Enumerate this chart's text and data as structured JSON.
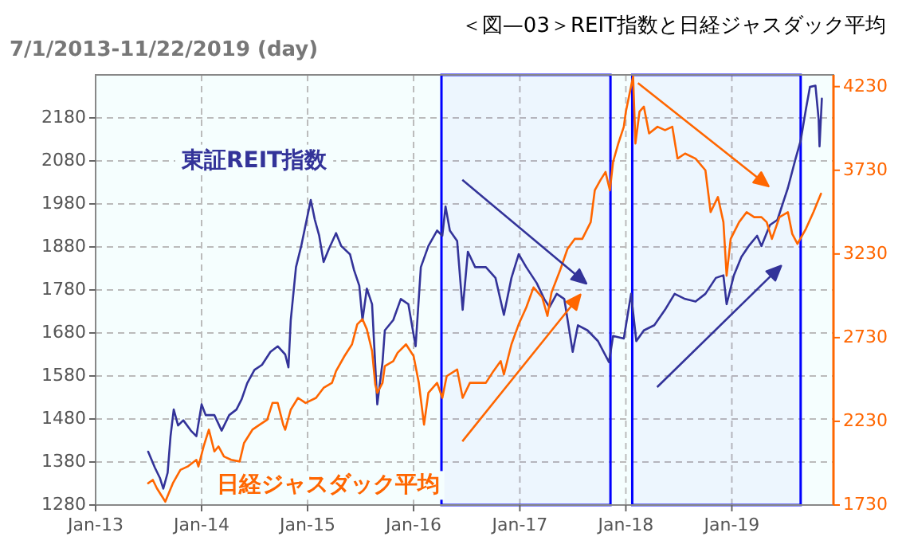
{
  "chart_data": {
    "type": "line",
    "title": "＜図—03＞REIT指数と日経ジャスダック平均",
    "subtitle": "7/1/2013-11/22/2019 (day)",
    "xlim": [
      "2013-01-01",
      "2019-12-17"
    ],
    "xticks": [
      {
        "value": "2013-01-01",
        "label": "Jan-13"
      },
      {
        "value": "2014-01-01",
        "label": "Jan-14"
      },
      {
        "value": "2015-01-01",
        "label": "Jan-15"
      },
      {
        "value": "2016-01-01",
        "label": "Jan-16"
      },
      {
        "value": "2017-01-01",
        "label": "Jan-17"
      },
      {
        "value": "2018-01-01",
        "label": "Jan-18"
      },
      {
        "value": "2019-01-01",
        "label": "Jan-19"
      }
    ],
    "ylim": [
      1280,
      2280
    ],
    "yticks": [
      1280,
      1380,
      1480,
      1580,
      1680,
      1780,
      1880,
      1980,
      2080,
      2180
    ],
    "y2lim": [
      1730,
      4300
    ],
    "y2ticks": [
      1730,
      2230,
      2730,
      3230,
      3730,
      4230
    ],
    "grid": true,
    "marker": "none",
    "line_style": "solid",
    "bands": [
      {
        "axis": "x",
        "from": "2016-04-06",
        "to": "2017-11-09",
        "color": "#0000ff"
      },
      {
        "axis": "x",
        "from": "2018-01-23",
        "to": "2019-08-26",
        "color": "#0000ff"
      }
    ],
    "series": [
      {
        "name": "東証REIT指数",
        "color": "#333399",
        "x": [
          "2013-07-01",
          "2013-07-24",
          "2013-08-11",
          "2013-08-22",
          "2013-09-06",
          "2013-09-16",
          "2013-09-27",
          "2013-10-12",
          "2013-10-30",
          "2013-11-25",
          "2013-12-14",
          "2014-01-01",
          "2014-01-15",
          "2014-02-14",
          "2014-03-11",
          "2014-04-06",
          "2014-05-01",
          "2014-05-19",
          "2014-06-07",
          "2014-07-02",
          "2014-07-28",
          "2014-08-26",
          "2014-09-20",
          "2014-10-16",
          "2014-10-27",
          "2014-11-04",
          "2014-11-22",
          "2014-12-10",
          "2014-12-25",
          "2015-01-12",
          "2015-01-26",
          "2015-02-10",
          "2015-02-25",
          "2015-03-15",
          "2015-04-09",
          "2015-04-27",
          "2015-05-27",
          "2015-06-10",
          "2015-06-28",
          "2015-07-09",
          "2015-07-24",
          "2015-08-11",
          "2015-08-29",
          "2015-09-16",
          "2015-09-24",
          "2015-10-23",
          "2015-11-18",
          "2015-12-14",
          "2016-01-08",
          "2016-01-26",
          "2016-02-21",
          "2016-03-22",
          "2016-04-09",
          "2016-04-20",
          "2016-05-05",
          "2016-05-30",
          "2016-06-18",
          "2016-07-06",
          "2016-07-31",
          "2016-09-06",
          "2016-10-09",
          "2016-11-07",
          "2016-12-03",
          "2016-12-28",
          "2017-01-23",
          "2017-02-28",
          "2017-03-26",
          "2017-04-13",
          "2017-05-08",
          "2017-06-03",
          "2017-07-02",
          "2017-07-20",
          "2017-08-22",
          "2017-09-27",
          "2017-11-04",
          "2017-11-18",
          "2017-12-25",
          "2018-01-19",
          "2018-02-06",
          "2018-03-04",
          "2018-04-09",
          "2018-05-16",
          "2018-06-18",
          "2018-07-24",
          "2018-08-29",
          "2018-10-02",
          "2018-11-07",
          "2018-12-03",
          "2018-12-14",
          "2019-01-08",
          "2019-02-03",
          "2019-02-28",
          "2019-03-29",
          "2019-04-13",
          "2019-05-12",
          "2019-06-07",
          "2019-06-25",
          "2019-07-13",
          "2019-08-08",
          "2019-08-26",
          "2019-09-13",
          "2019-09-27",
          "2019-10-16",
          "2019-10-27",
          "2019-10-30",
          "2019-11-07"
        ],
        "values": [
          1404,
          1367,
          1342,
          1318,
          1355,
          1440,
          1502,
          1465,
          1477,
          1453,
          1440,
          1514,
          1489,
          1489,
          1453,
          1489,
          1502,
          1526,
          1563,
          1594,
          1606,
          1636,
          1649,
          1630,
          1600,
          1710,
          1833,
          1882,
          1931,
          1989,
          1943,
          1906,
          1845,
          1875,
          1912,
          1882,
          1863,
          1826,
          1790,
          1710,
          1783,
          1747,
          1514,
          1612,
          1686,
          1710,
          1759,
          1747,
          1649,
          1833,
          1882,
          1918,
          1906,
          1974,
          1918,
          1894,
          1734,
          1869,
          1833,
          1833,
          1808,
          1722,
          1808,
          1863,
          1833,
          1796,
          1759,
          1740,
          1771,
          1759,
          1636,
          1698,
          1686,
          1661,
          1612,
          1673,
          1667,
          1771,
          1661,
          1686,
          1698,
          1734,
          1771,
          1759,
          1753,
          1771,
          1808,
          1814,
          1747,
          1814,
          1857,
          1882,
          1906,
          1882,
          1931,
          1943,
          1980,
          2017,
          2084,
          2127,
          2200,
          2252,
          2255,
          2176,
          2114,
          2225
        ]
      },
      {
        "name": "日経ジャスダック平均",
        "color": "#ff6600",
        "axis": "y2",
        "x": [
          "2013-07-01",
          "2013-07-17",
          "2013-07-31",
          "2013-08-29",
          "2013-09-24",
          "2013-10-20",
          "2013-11-14",
          "2013-12-14",
          "2013-12-21",
          "2014-01-08",
          "2014-01-26",
          "2014-02-14",
          "2014-02-28",
          "2014-03-19",
          "2014-04-13",
          "2014-05-12",
          "2014-05-27",
          "2014-06-25",
          "2014-07-20",
          "2014-08-15",
          "2014-09-02",
          "2014-09-20",
          "2014-10-09",
          "2014-10-16",
          "2014-11-04",
          "2014-11-29",
          "2014-12-25",
          "2015-01-30",
          "2015-02-25",
          "2015-03-26",
          "2015-04-09",
          "2015-05-08",
          "2015-06-03",
          "2015-06-21",
          "2015-07-09",
          "2015-07-24",
          "2015-08-11",
          "2015-08-22",
          "2015-08-29",
          "2015-09-16",
          "2015-09-24",
          "2015-10-23",
          "2015-11-07",
          "2015-12-06",
          "2016-01-01",
          "2016-01-19",
          "2016-02-06",
          "2016-02-21",
          "2016-03-22",
          "2016-04-09",
          "2016-04-24",
          "2016-05-30",
          "2016-06-18",
          "2016-07-13",
          "2016-09-06",
          "2016-10-02",
          "2016-10-27",
          "2016-11-07",
          "2016-12-03",
          "2016-12-28",
          "2017-01-23",
          "2017-02-17",
          "2017-03-19",
          "2017-04-06",
          "2017-04-20",
          "2017-05-19",
          "2017-06-14",
          "2017-07-09",
          "2017-08-04",
          "2017-09-02",
          "2017-09-16",
          "2017-10-05",
          "2017-10-23",
          "2017-11-07",
          "2017-11-18",
          "2017-12-06",
          "2017-12-25",
          "2018-01-01",
          "2018-01-26",
          "2018-02-03",
          "2018-02-17",
          "2018-03-04",
          "2018-03-22",
          "2018-04-20",
          "2018-05-16",
          "2018-06-10",
          "2018-06-28",
          "2018-07-24",
          "2018-08-29",
          "2018-10-02",
          "2018-10-20",
          "2018-11-14",
          "2018-12-03",
          "2018-12-14",
          "2018-12-28",
          "2019-01-26",
          "2019-02-21",
          "2019-03-19",
          "2019-04-13",
          "2019-05-01",
          "2019-05-19",
          "2019-06-14",
          "2019-07-13",
          "2019-07-28",
          "2019-08-15",
          "2019-09-13",
          "2019-10-09",
          "2019-11-04"
        ],
        "values": [
          1860,
          1880,
          1830,
          1750,
          1860,
          1940,
          1960,
          2000,
          1960,
          2080,
          2180,
          2050,
          2080,
          2020,
          2000,
          1990,
          2100,
          2180,
          2210,
          2240,
          2340,
          2340,
          2210,
          2180,
          2300,
          2370,
          2340,
          2370,
          2430,
          2460,
          2530,
          2620,
          2690,
          2810,
          2840,
          2780,
          2650,
          2450,
          2400,
          2460,
          2560,
          2590,
          2640,
          2690,
          2620,
          2460,
          2210,
          2400,
          2460,
          2370,
          2500,
          2540,
          2370,
          2460,
          2460,
          2530,
          2590,
          2510,
          2690,
          2810,
          2910,
          3030,
          2970,
          2860,
          3000,
          3130,
          3260,
          3320,
          3320,
          3420,
          3610,
          3670,
          3720,
          3610,
          3780,
          3890,
          3990,
          4080,
          4290,
          3890,
          4080,
          4110,
          3950,
          3990,
          3970,
          3990,
          3800,
          3830,
          3800,
          3730,
          3480,
          3570,
          3420,
          3100,
          3320,
          3420,
          3480,
          3450,
          3450,
          3420,
          3320,
          3450,
          3480,
          3350,
          3290,
          3380,
          3480,
          3590
        ]
      }
    ]
  }
}
